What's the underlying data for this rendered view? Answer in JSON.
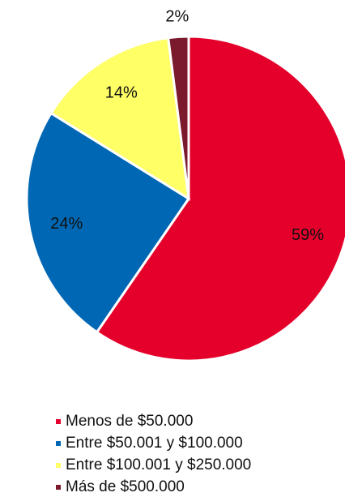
{
  "chart_data": {
    "type": "pie",
    "categories": [
      "Menos de $50.000",
      "Entre $50.001  y $100.000",
      "Entre $100.001  y $250.000",
      "Más de $500.000"
    ],
    "values": [
      59,
      24,
      14,
      2
    ],
    "value_labels": [
      "59%",
      "24%",
      "14%",
      "2%"
    ],
    "colors": [
      "#e4002b",
      "#0067b4",
      "#ffff66",
      "#7a1a2c"
    ],
    "legend": "bottom"
  }
}
